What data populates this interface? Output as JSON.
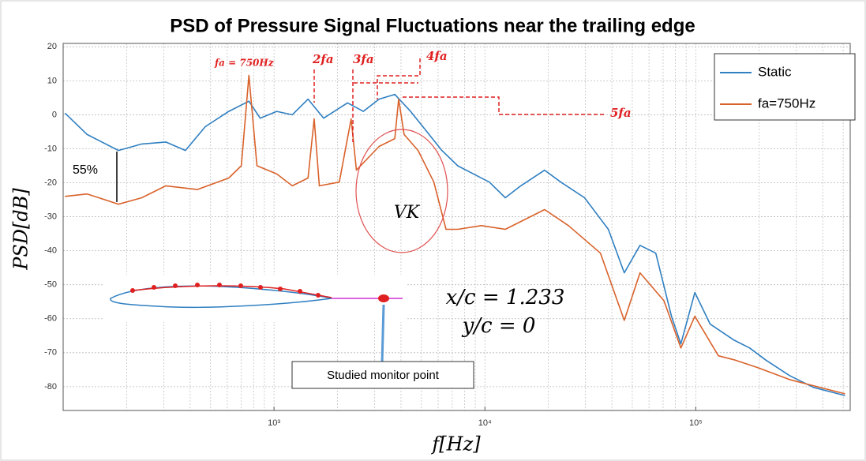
{
  "chart_data": {
    "type": "line",
    "title": "PSD of Pressure Signal Fluctuations near the trailing edge",
    "x_label": "f[Hz]",
    "y_label": "PSD[dB]",
    "log_x": true,
    "grid": true,
    "legend": "upper right",
    "xlim": [
      100,
      540000
    ],
    "ylim": [
      -87,
      21
    ],
    "xticks": [
      {
        "value": 1000,
        "label": "10³"
      },
      {
        "value": 10000,
        "label": "10⁴"
      },
      {
        "value": 100000,
        "label": "10⁵"
      }
    ],
    "yticks": [
      20,
      10,
      0,
      -10,
      -20,
      -30,
      -40,
      -50,
      -60,
      -70,
      -80
    ],
    "series": [
      {
        "name": "Static",
        "color": "#2f7fc1",
        "x": [
          102,
          130,
          183,
          236,
          307,
          380,
          472,
          610,
          760,
          860,
          1030,
          1220,
          1450,
          1720,
          2230,
          2650,
          3150,
          3740,
          4440,
          5270,
          6250,
          7430,
          8820,
          10500,
          12500,
          14800,
          19200,
          22900,
          29700,
          38500,
          45800,
          54400,
          64600,
          76700,
          85000,
          99000,
          117000,
          152000,
          180000,
          214000,
          278000,
          361000,
          510000
        ],
        "values": [
          0.5,
          -5.8,
          -10.5,
          -8.6,
          -8,
          -10.5,
          -3.5,
          1,
          4,
          -1,
          1,
          0,
          4.6,
          -1,
          3.5,
          1,
          4.6,
          6,
          1,
          -4.7,
          -10.5,
          -15,
          -17.4,
          -19.8,
          -24.4,
          -20.9,
          -16.3,
          -19.8,
          -24.4,
          -33.7,
          -46.5,
          -38.4,
          -40.7,
          -59.3,
          -67.4,
          -52.3,
          -61.6,
          -66.3,
          -68.6,
          -72.1,
          -76.7,
          -80.2,
          -82.6
        ]
      },
      {
        "name": "fa=750Hz",
        "color": "#d9622b",
        "x": [
          102,
          130,
          183,
          236,
          307,
          433,
          610,
          700,
          760,
          830,
          1030,
          1220,
          1450,
          1550,
          1640,
          2040,
          2320,
          2460,
          3150,
          3740,
          3900,
          4140,
          4820,
          5730,
          6540,
          7430,
          9620,
          12500,
          16200,
          19200,
          24900,
          35300,
          45800,
          54400,
          70600,
          85000,
          99000,
          128000,
          152000,
          197000,
          278000,
          510000
        ],
        "values": [
          -24,
          -23.3,
          -26.3,
          -24.4,
          -20.9,
          -22,
          -18.6,
          -15,
          11.6,
          -15,
          -17.4,
          -20.9,
          -18.6,
          -1.2,
          -20.9,
          -19.8,
          -1.2,
          -16.3,
          -9.3,
          -7,
          4.6,
          -5.8,
          -10.5,
          -19.8,
          -33.7,
          -33.7,
          -32.6,
          -33.7,
          -30.2,
          -27.9,
          -32.6,
          -40.7,
          -60.5,
          -46.5,
          -54.7,
          -68.6,
          -59.3,
          -70.9,
          -72.1,
          -74.4,
          -77.9,
          -82.1
        ]
      }
    ],
    "annotations": {
      "fa": "fa = 750Hz",
      "f2": "2fa",
      "f3": "3fa",
      "f4": "4fa",
      "f5": "5fa",
      "percent": "55%",
      "vk": "VK",
      "xc": "x/c = 1.233",
      "yc": "y/c = 0",
      "monitor": "Studied monitor point"
    }
  }
}
